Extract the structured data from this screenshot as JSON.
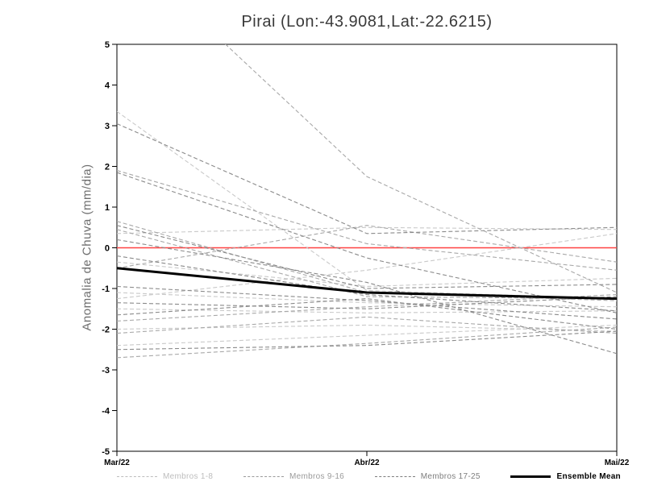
{
  "title": "Pirai (Lon:-43.9081,Lat:-22.6215)",
  "chart_data": {
    "type": "line",
    "title": "Pirai (Lon:-43.9081,Lat:-22.6215)",
    "xlabel": "",
    "ylabel": "Anomalia de Chuva (mm/dia)",
    "x_categories": [
      "Mar/22",
      "Abr/22",
      "Mai/22"
    ],
    "ylim": [
      -5,
      5
    ],
    "yticks": [
      5,
      4,
      3,
      2,
      1,
      0,
      -1,
      -2,
      -3,
      -4,
      -5
    ],
    "grid": false,
    "legend_position": "bottom",
    "zero_line": {
      "value": 0,
      "color": "#ff4242"
    },
    "frame_color": "#000000",
    "series_groups": [
      {
        "name": "Membros 1-8",
        "color": "#c9c9c9",
        "line_style": "dashed",
        "members": [
          [
            3.35,
            -1.05,
            -1.25
          ],
          [
            0.35,
            0.5,
            0.45
          ],
          [
            -0.35,
            -0.95,
            -0.75
          ],
          [
            -1.1,
            -1.35,
            -1.45
          ],
          [
            -1.5,
            -1.6,
            -1.55
          ],
          [
            -2.0,
            -1.9,
            -2.05
          ],
          [
            -2.4,
            -2.15,
            -1.9
          ],
          [
            -1.25,
            -0.55,
            0.35
          ]
        ]
      },
      {
        "name": "Membros 9-16",
        "color": "#a8a8a8",
        "line_style": "dashed",
        "members": [
          [
            7.5,
            1.75,
            -1.1
          ],
          [
            1.9,
            0.1,
            -0.55
          ],
          [
            0.65,
            -1.1,
            -1.3
          ],
          [
            0.45,
            -1.2,
            -1.25
          ],
          [
            -0.5,
            0.55,
            -0.35
          ],
          [
            -1.8,
            -1.45,
            -1.15
          ],
          [
            -2.1,
            -1.7,
            -2.1
          ],
          [
            -2.7,
            -2.35,
            -1.95
          ]
        ]
      },
      {
        "name": "Membros 17-25",
        "color": "#8a8a8a",
        "line_style": "dashed",
        "members": [
          [
            3.05,
            0.35,
            0.5
          ],
          [
            1.85,
            -0.25,
            -1.6
          ],
          [
            0.55,
            -1.0,
            -0.9
          ],
          [
            -0.2,
            -1.15,
            -1.55
          ],
          [
            -0.95,
            -1.3,
            -1.75
          ],
          [
            -1.35,
            -1.5,
            -1.2
          ],
          [
            -1.65,
            -1.25,
            -2.0
          ],
          [
            -2.5,
            -2.4,
            -2.05
          ],
          [
            0.2,
            -0.85,
            -2.6
          ]
        ]
      }
    ],
    "ensemble_mean": {
      "name": "Ensemble Mean",
      "color": "#000000",
      "line_style": "solid",
      "values": [
        -0.5,
        -1.1,
        -1.25
      ]
    },
    "legend": [
      {
        "label": "Membros 1-8",
        "color": "#bdbdbd",
        "style": "dashed",
        "weight": "normal"
      },
      {
        "label": "Membros 9-16",
        "color": "#9a9a9a",
        "style": "dashed",
        "weight": "normal"
      },
      {
        "label": "Membros 17-25",
        "color": "#7d7d7d",
        "style": "dashed",
        "weight": "normal"
      },
      {
        "label": "Ensemble Mean",
        "color": "#000000",
        "style": "solid",
        "weight": "bold"
      }
    ]
  }
}
